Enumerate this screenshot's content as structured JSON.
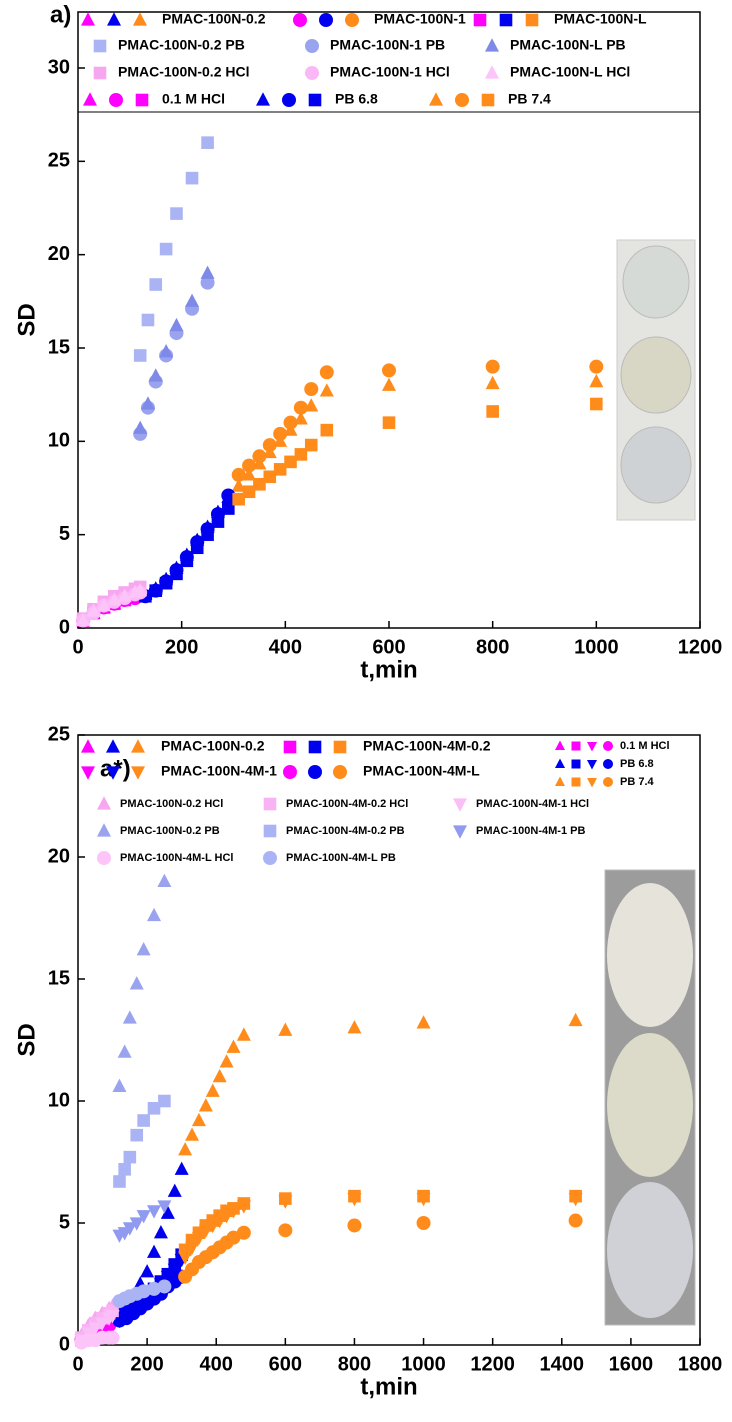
{
  "chart_data": [
    {
      "type": "scatter",
      "annotation": "a)",
      "xlabel": "t,min",
      "ylabel": "SD",
      "xlim": [
        0,
        1200
      ],
      "ylim": [
        0,
        33
      ],
      "xticks": [
        0,
        200,
        400,
        600,
        800,
        1000,
        1200
      ],
      "yticks": [
        0,
        5,
        10,
        15,
        20,
        25,
        30
      ],
      "media": [
        {
          "name": "0.1 M HCl",
          "color": "#ff00ff"
        },
        {
          "name": "PB 6.8",
          "color": "#0000ee"
        },
        {
          "name": "PB 7.4",
          "color": "#ff8c1a"
        }
      ],
      "series": [
        {
          "name": "PMAC-100N-0.2",
          "marker": "triangle-up",
          "color": "#ff00ff",
          "x": [
            10,
            30,
            50,
            70,
            90,
            110
          ],
          "values": [
            0.4,
            0.8,
            1.1,
            1.3,
            1.5,
            1.7
          ]
        },
        {
          "name": "PMAC-100N-0.2",
          "marker": "triangle-up",
          "color": "#0000ee",
          "x": [
            130,
            150,
            170,
            190,
            210,
            230,
            250,
            270,
            290
          ],
          "values": [
            1.8,
            2.1,
            2.6,
            3.2,
            3.9,
            4.7,
            5.4,
            6.2,
            7.0
          ]
        },
        {
          "name": "PMAC-100N-0.2",
          "marker": "triangle-up",
          "color": "#ff8c1a",
          "x": [
            310,
            330,
            350,
            370,
            390,
            410,
            430,
            450,
            480,
            600,
            800,
            1000
          ],
          "values": [
            7.6,
            8.2,
            8.8,
            9.4,
            10.0,
            10.6,
            11.2,
            11.9,
            12.7,
            13.0,
            13.1,
            13.2
          ]
        },
        {
          "name": "PMAC-100N-1",
          "marker": "circle",
          "color": "#ff00ff",
          "x": [
            10,
            30,
            50,
            70,
            90,
            110
          ],
          "values": [
            0.4,
            0.8,
            1.1,
            1.3,
            1.5,
            1.6
          ]
        },
        {
          "name": "PMAC-100N-1",
          "marker": "circle",
          "color": "#0000ee",
          "x": [
            130,
            150,
            170,
            190,
            210,
            230,
            250,
            270,
            290
          ],
          "values": [
            1.7,
            2.0,
            2.5,
            3.1,
            3.8,
            4.6,
            5.3,
            6.1,
            7.1
          ]
        },
        {
          "name": "PMAC-100N-1",
          "marker": "circle",
          "color": "#ff8c1a",
          "x": [
            310,
            330,
            350,
            370,
            390,
            410,
            430,
            450,
            480,
            600,
            800,
            1000
          ],
          "values": [
            8.2,
            8.7,
            9.2,
            9.8,
            10.4,
            11.0,
            11.8,
            12.8,
            13.7,
            13.8,
            14.0,
            14.0
          ]
        },
        {
          "name": "PMAC-100N-L",
          "marker": "square",
          "color": "#ff00ff",
          "x": [
            10,
            30,
            50,
            70,
            90,
            110
          ],
          "values": [
            0.4,
            0.8,
            1.1,
            1.3,
            1.5,
            1.7
          ]
        },
        {
          "name": "PMAC-100N-L",
          "marker": "square",
          "color": "#0000ee",
          "x": [
            130,
            150,
            170,
            190,
            210,
            230,
            250,
            270,
            290
          ],
          "values": [
            1.7,
            2.0,
            2.4,
            2.9,
            3.6,
            4.3,
            5.0,
            5.7,
            6.4
          ]
        },
        {
          "name": "PMAC-100N-L",
          "marker": "square",
          "color": "#ff8c1a",
          "x": [
            310,
            330,
            350,
            370,
            390,
            410,
            430,
            450,
            480,
            600,
            800,
            1000
          ],
          "values": [
            6.9,
            7.3,
            7.7,
            8.1,
            8.5,
            8.9,
            9.3,
            9.8,
            10.6,
            11.0,
            11.6,
            12.0
          ]
        },
        {
          "name": "PMAC-100N-0.2 PB",
          "marker": "square",
          "color": "#aab4f4",
          "x": [
            120,
            135,
            150,
            170,
            190,
            220,
            250
          ],
          "values": [
            14.6,
            16.5,
            18.4,
            20.3,
            22.2,
            24.1,
            26.0
          ]
        },
        {
          "name": "PMAC-100N-1 PB",
          "marker": "circle",
          "color": "#9aa4ee",
          "x": [
            120,
            135,
            150,
            170,
            190,
            220,
            250
          ],
          "values": [
            10.4,
            11.8,
            13.2,
            14.6,
            15.8,
            17.1,
            18.5
          ]
        },
        {
          "name": "PMAC-100N-L PB",
          "marker": "triangle-up",
          "color": "#7f8ae8",
          "x": [
            120,
            135,
            150,
            170,
            190,
            220,
            250
          ],
          "values": [
            10.7,
            12.0,
            13.5,
            14.8,
            16.2,
            17.5,
            19.0
          ]
        },
        {
          "name": "PMAC-100N-0.2 HCl",
          "marker": "square",
          "color": "#f7a6f0",
          "x": [
            10,
            30,
            50,
            70,
            90,
            110,
            120
          ],
          "values": [
            0.5,
            1.0,
            1.4,
            1.7,
            1.9,
            2.1,
            2.2
          ]
        },
        {
          "name": "PMAC-100N-1 HCl",
          "marker": "circle",
          "color": "#fbb8f6",
          "x": [
            10,
            30,
            50,
            70,
            90,
            110,
            120
          ],
          "values": [
            0.4,
            0.8,
            1.2,
            1.4,
            1.6,
            1.8,
            1.9
          ]
        },
        {
          "name": "PMAC-100N-L HCl",
          "marker": "triangle-up",
          "color": "#fcc4f8",
          "x": [
            10,
            30,
            50,
            70,
            90,
            110,
            120
          ],
          "values": [
            0.4,
            0.9,
            1.2,
            1.5,
            1.7,
            1.9,
            2.0
          ]
        }
      ]
    },
    {
      "type": "scatter",
      "annotation": "a*)",
      "xlabel": "t,min",
      "ylabel": "SD",
      "xlim": [
        0,
        1800
      ],
      "ylim": [
        0,
        25
      ],
      "xticks": [
        0,
        200,
        400,
        600,
        800,
        1000,
        1200,
        1400,
        1600,
        1800
      ],
      "yticks": [
        0,
        5,
        10,
        15,
        20,
        25
      ],
      "media": [
        {
          "name": "0.1 M HCl",
          "color": "#ff00ff"
        },
        {
          "name": "PB 6.8",
          "color": "#0000ee"
        },
        {
          "name": "PB 7.4",
          "color": "#ff8c1a"
        }
      ],
      "series": [
        {
          "name": "PMAC-100N-0.2",
          "marker": "triangle-up",
          "color": "#ff00ff",
          "x": [
            10,
            30,
            50,
            70,
            90
          ],
          "values": [
            0.3,
            0.6,
            0.8,
            1.0,
            1.2
          ]
        },
        {
          "name": "PMAC-100N-0.2",
          "marker": "triangle-up",
          "color": "#0000ee",
          "x": [
            120,
            140,
            160,
            180,
            200,
            220,
            240,
            260,
            280,
            300
          ],
          "values": [
            1.3,
            1.6,
            2.0,
            2.5,
            3.0,
            3.8,
            4.6,
            5.4,
            6.3,
            7.2
          ]
        },
        {
          "name": "PMAC-100N-0.2",
          "marker": "triangle-up",
          "color": "#ff8c1a",
          "x": [
            310,
            330,
            350,
            370,
            390,
            410,
            430,
            450,
            480,
            600,
            800,
            1000,
            1440
          ],
          "values": [
            8.0,
            8.6,
            9.2,
            9.8,
            10.4,
            11.0,
            11.6,
            12.2,
            12.7,
            12.9,
            13.0,
            13.2,
            13.3
          ]
        },
        {
          "name": "PMAC-100N-4M-0.2",
          "marker": "square",
          "color": "#ff00ff",
          "x": [
            10,
            30,
            50,
            70,
            90
          ],
          "values": [
            0.2,
            0.5,
            0.7,
            0.9,
            1.0
          ]
        },
        {
          "name": "PMAC-100N-4M-0.2",
          "marker": "square",
          "color": "#0000ee",
          "x": [
            120,
            140,
            160,
            180,
            200,
            220,
            240,
            260,
            280,
            300
          ],
          "values": [
            1.1,
            1.3,
            1.5,
            1.8,
            2.0,
            2.3,
            2.6,
            2.9,
            3.3,
            3.7
          ]
        },
        {
          "name": "PMAC-100N-4M-0.2",
          "marker": "square",
          "color": "#ff8c1a",
          "x": [
            310,
            330,
            350,
            370,
            390,
            410,
            430,
            450,
            480,
            600,
            800,
            1000,
            1440
          ],
          "values": [
            3.9,
            4.3,
            4.6,
            4.9,
            5.1,
            5.3,
            5.5,
            5.6,
            5.8,
            6.0,
            6.1,
            6.1,
            6.1
          ]
        },
        {
          "name": "PMAC-100N-4M-1",
          "marker": "triangle-down",
          "color": "#ff00ff",
          "x": [
            10,
            30,
            50,
            70,
            90
          ],
          "values": [
            0.2,
            0.4,
            0.6,
            0.8,
            0.9
          ]
        },
        {
          "name": "PMAC-100N-4M-1",
          "marker": "triangle-down",
          "color": "#0000ee",
          "x": [
            120,
            140,
            160,
            180,
            200,
            220,
            240,
            260,
            280,
            300
          ],
          "values": [
            1.0,
            1.2,
            1.4,
            1.7,
            1.9,
            2.2,
            2.5,
            2.8,
            3.1,
            3.5
          ]
        },
        {
          "name": "PMAC-100N-4M-1",
          "marker": "triangle-down",
          "color": "#ff8c1a",
          "x": [
            310,
            330,
            350,
            370,
            390,
            410,
            430,
            450,
            480,
            600,
            800,
            1000,
            1440
          ],
          "values": [
            3.6,
            4.0,
            4.4,
            4.7,
            4.9,
            5.1,
            5.3,
            5.5,
            5.7,
            5.9,
            6.0,
            6.0,
            6.0
          ]
        },
        {
          "name": "PMAC-100N-4M-L",
          "marker": "circle",
          "color": "#ff00ff",
          "x": [
            10,
            30,
            50,
            70,
            90
          ],
          "values": [
            0.2,
            0.4,
            0.6,
            0.7,
            0.8
          ]
        },
        {
          "name": "PMAC-100N-4M-L",
          "marker": "circle",
          "color": "#0000ee",
          "x": [
            120,
            140,
            160,
            180,
            200,
            220,
            240,
            260,
            280,
            300
          ],
          "values": [
            1.0,
            1.1,
            1.3,
            1.5,
            1.7,
            1.9,
            2.1,
            2.4,
            2.6,
            2.8
          ]
        },
        {
          "name": "PMAC-100N-4M-L",
          "marker": "circle",
          "color": "#ff8c1a",
          "x": [
            310,
            330,
            350,
            370,
            390,
            410,
            430,
            450,
            480,
            600,
            800,
            1000,
            1440
          ],
          "values": [
            2.8,
            3.1,
            3.4,
            3.6,
            3.8,
            4.0,
            4.2,
            4.4,
            4.6,
            4.7,
            4.9,
            5.0,
            5.1
          ]
        },
        {
          "name": "PMAC-100N-0.2 HCl",
          "marker": "triangle-up",
          "color": "#f7a6f0",
          "x": [
            10,
            30,
            50,
            70,
            90,
            100
          ],
          "values": [
            0.4,
            0.8,
            1.1,
            1.3,
            1.5,
            1.6
          ]
        },
        {
          "name": "PMAC-100N-4M-0.2 HCl",
          "marker": "square",
          "color": "#f9b2f4",
          "x": [
            10,
            30,
            50,
            70,
            90,
            100
          ],
          "values": [
            0.3,
            0.6,
            0.9,
            1.1,
            1.3,
            1.4
          ]
        },
        {
          "name": "PMAC-100N-4M-1 HCl",
          "marker": "triangle-down",
          "color": "#fbbff7",
          "x": [
            10,
            30,
            50,
            70,
            90,
            100
          ],
          "values": [
            0.2,
            0.5,
            0.7,
            0.9,
            1.1,
            1.2
          ]
        },
        {
          "name": "PMAC-100N-0.2 PB",
          "marker": "triangle-up",
          "color": "#9aa4ee",
          "x": [
            120,
            135,
            150,
            170,
            190,
            220,
            250
          ],
          "values": [
            10.6,
            12.0,
            13.4,
            14.8,
            16.2,
            17.6,
            19.0
          ]
        },
        {
          "name": "PMAC-100N-4M-0.2 PB",
          "marker": "square",
          "color": "#aab4f4",
          "x": [
            120,
            135,
            150,
            170,
            190,
            220,
            250
          ],
          "values": [
            6.7,
            7.2,
            7.7,
            8.6,
            9.2,
            9.7,
            10.0
          ]
        },
        {
          "name": "PMAC-100N-4M-1 PB",
          "marker": "triangle-down",
          "color": "#8f9af0",
          "x": [
            120,
            135,
            150,
            170,
            190,
            220,
            250
          ],
          "values": [
            4.5,
            4.6,
            4.8,
            5.0,
            5.3,
            5.5,
            5.7
          ]
        },
        {
          "name": "PMAC-100N-4M-L HCl",
          "marker": "circle",
          "color": "#fcc4f8",
          "x": [
            10,
            30,
            50,
            70,
            90,
            100
          ],
          "values": [
            0.1,
            0.2,
            0.2,
            0.3,
            0.3,
            0.3
          ]
        },
        {
          "name": "PMAC-100N-4M-L PB",
          "marker": "circle",
          "color": "#aab4f4",
          "x": [
            120,
            135,
            150,
            170,
            190,
            220,
            250
          ],
          "values": [
            1.8,
            1.9,
            2.0,
            2.1,
            2.2,
            2.3,
            2.4
          ]
        }
      ]
    }
  ]
}
